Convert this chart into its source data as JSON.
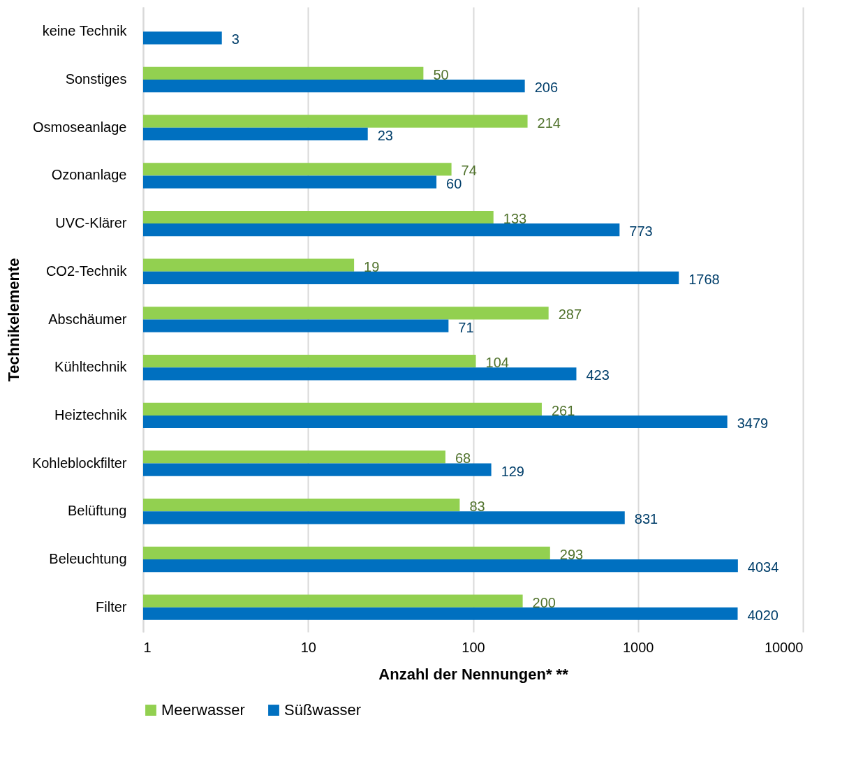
{
  "chart_data": {
    "type": "bar",
    "orientation": "horizontal",
    "log": "x",
    "xlabel": "Anzahl der Nennungen* **",
    "ylabel": "Technikelemente",
    "categories": [
      "keine Technik",
      "Sonstiges",
      "Osmoseanlage",
      "Ozonanlage",
      "UVC-Klärer",
      "CO2-Technik",
      "Abschäumer",
      "Kühltechnik",
      "Heiztechnik",
      "Kohleblockfilter",
      "Belüftung",
      "Beleuchtung",
      "Filter"
    ],
    "series": [
      {
        "name": "Meerwasser",
        "color": "#92d050",
        "values": [
          null,
          50,
          214,
          74,
          133,
          19,
          287,
          104,
          261,
          68,
          83,
          293,
          200
        ]
      },
      {
        "name": "Süßwasser",
        "color": "#0070c0",
        "values": [
          3,
          206,
          23,
          60,
          773,
          1768,
          71,
          423,
          3479,
          129,
          831,
          4034,
          4020
        ]
      }
    ],
    "xlim": [
      1,
      10000
    ],
    "xticks": [
      1,
      10,
      100,
      1000,
      10000
    ],
    "grid": "x",
    "legend": "bottom",
    "data_labels": true
  }
}
